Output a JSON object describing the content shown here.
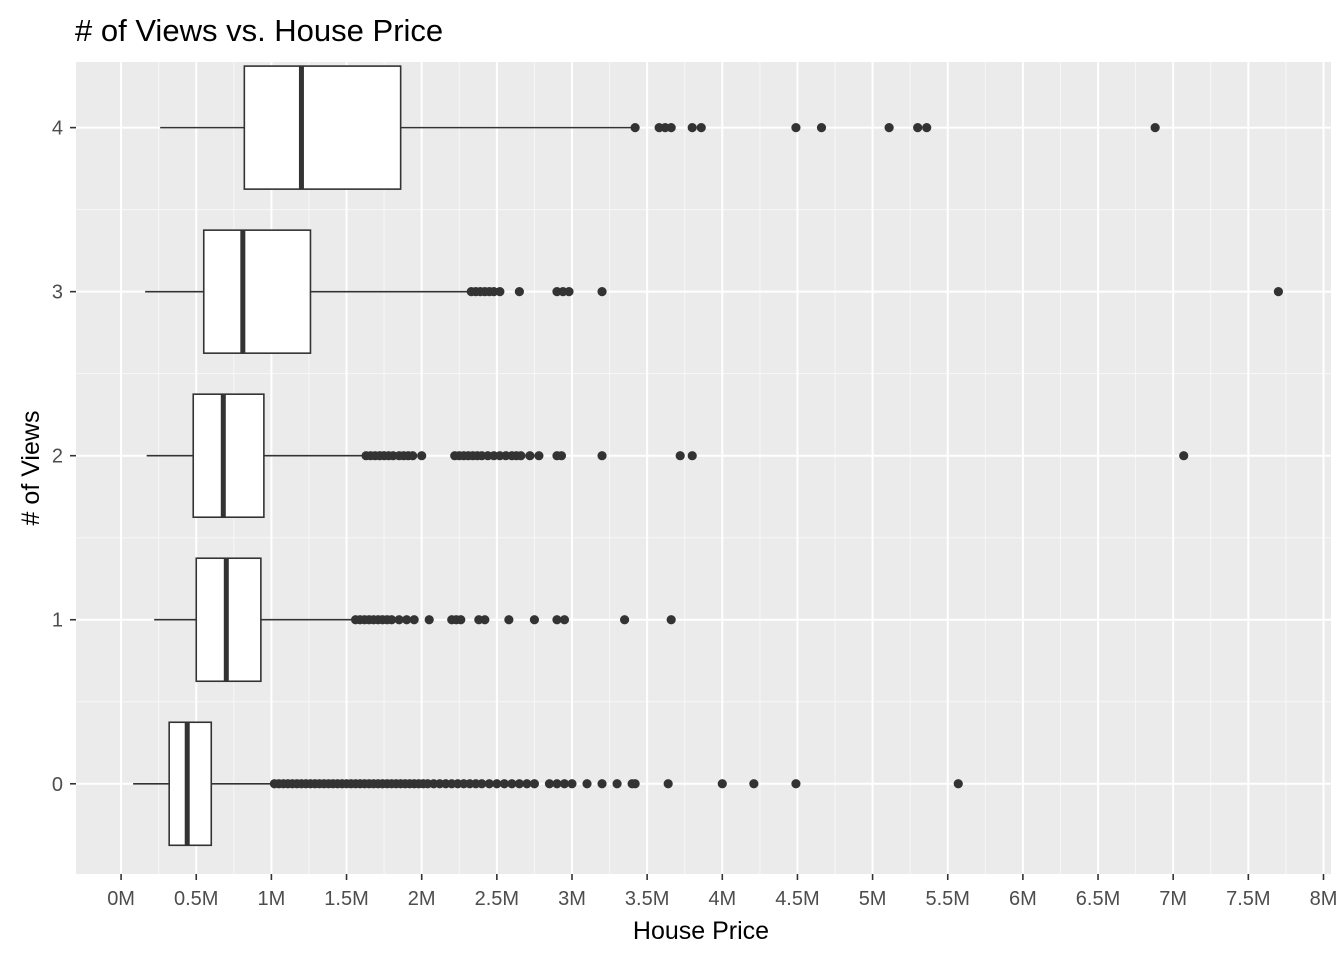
{
  "chart_data": {
    "type": "boxplot",
    "orientation": "horizontal",
    "title": "# of Views vs. House Price",
    "xlabel": "House Price",
    "ylabel": "# of Views",
    "xlim": [
      -0.3,
      8.05
    ],
    "ylim": [
      -0.55,
      4.4
    ],
    "x_unit": "M",
    "x_ticks": [
      {
        "value": 0,
        "label": "0M"
      },
      {
        "value": 0.5,
        "label": "0.5M"
      },
      {
        "value": 1,
        "label": "1M"
      },
      {
        "value": 1.5,
        "label": "1.5M"
      },
      {
        "value": 2,
        "label": "2M"
      },
      {
        "value": 2.5,
        "label": "2.5M"
      },
      {
        "value": 3,
        "label": "3M"
      },
      {
        "value": 3.5,
        "label": "3.5M"
      },
      {
        "value": 4,
        "label": "4M"
      },
      {
        "value": 4.5,
        "label": "4.5M"
      },
      {
        "value": 5,
        "label": "5M"
      },
      {
        "value": 5.5,
        "label": "5.5M"
      },
      {
        "value": 6,
        "label": "6M"
      },
      {
        "value": 6.5,
        "label": "6.5M"
      },
      {
        "value": 7,
        "label": "7M"
      },
      {
        "value": 7.5,
        "label": "7.5M"
      },
      {
        "value": 8,
        "label": "8M"
      }
    ],
    "categories": [
      "0",
      "1",
      "2",
      "3",
      "4"
    ],
    "boxes": [
      {
        "category": "0",
        "whisker_low": 0.08,
        "q1": 0.32,
        "median": 0.44,
        "q3": 0.6,
        "whisker_high": 1.0,
        "outliers": [
          1.02,
          1.05,
          1.08,
          1.11,
          1.14,
          1.17,
          1.2,
          1.23,
          1.26,
          1.29,
          1.32,
          1.35,
          1.38,
          1.41,
          1.44,
          1.47,
          1.5,
          1.53,
          1.56,
          1.59,
          1.62,
          1.65,
          1.68,
          1.71,
          1.74,
          1.77,
          1.8,
          1.83,
          1.86,
          1.89,
          1.92,
          1.95,
          1.98,
          2.01,
          2.04,
          2.08,
          2.12,
          2.16,
          2.2,
          2.24,
          2.28,
          2.32,
          2.36,
          2.4,
          2.45,
          2.5,
          2.55,
          2.6,
          2.65,
          2.7,
          2.75,
          2.85,
          2.9,
          2.95,
          3.0,
          3.1,
          3.2,
          3.3,
          3.4,
          3.42,
          3.64,
          4.0,
          4.21,
          4.49,
          5.57
        ]
      },
      {
        "category": "1",
        "whisker_low": 0.22,
        "q1": 0.5,
        "median": 0.7,
        "q3": 0.93,
        "whisker_high": 1.54,
        "outliers": [
          1.56,
          1.59,
          1.62,
          1.65,
          1.68,
          1.71,
          1.74,
          1.77,
          1.8,
          1.85,
          1.9,
          1.95,
          2.05,
          2.2,
          2.23,
          2.26,
          2.38,
          2.42,
          2.58,
          2.75,
          2.9,
          2.95,
          3.35,
          3.66
        ]
      },
      {
        "category": "2",
        "whisker_low": 0.17,
        "q1": 0.48,
        "median": 0.68,
        "q3": 0.95,
        "whisker_high": 1.61,
        "outliers": [
          1.63,
          1.66,
          1.69,
          1.72,
          1.75,
          1.78,
          1.81,
          1.85,
          1.88,
          1.91,
          1.94,
          2.0,
          2.22,
          2.25,
          2.28,
          2.31,
          2.34,
          2.37,
          2.4,
          2.44,
          2.48,
          2.52,
          2.56,
          2.6,
          2.63,
          2.66,
          2.72,
          2.78,
          2.9,
          2.93,
          3.2,
          3.72,
          3.8,
          7.07
        ]
      },
      {
        "category": "3",
        "whisker_low": 0.16,
        "q1": 0.55,
        "median": 0.81,
        "q3": 1.26,
        "whisker_high": 2.31,
        "outliers": [
          2.33,
          2.36,
          2.39,
          2.42,
          2.45,
          2.48,
          2.52,
          2.65,
          2.9,
          2.94,
          2.98,
          3.2,
          7.7
        ]
      },
      {
        "category": "4",
        "whisker_low": 0.26,
        "q1": 0.82,
        "median": 1.2,
        "q3": 1.86,
        "whisker_high": 3.4,
        "outliers": [
          3.42,
          3.58,
          3.62,
          3.66,
          3.8,
          3.86,
          4.49,
          4.66,
          5.11,
          5.3,
          5.36,
          6.88
        ]
      }
    ],
    "grid": true,
    "panel_background": "#ebebeb",
    "grid_major_color": "#ffffff",
    "box_fill": "#ffffff",
    "line_color": "#333333"
  }
}
